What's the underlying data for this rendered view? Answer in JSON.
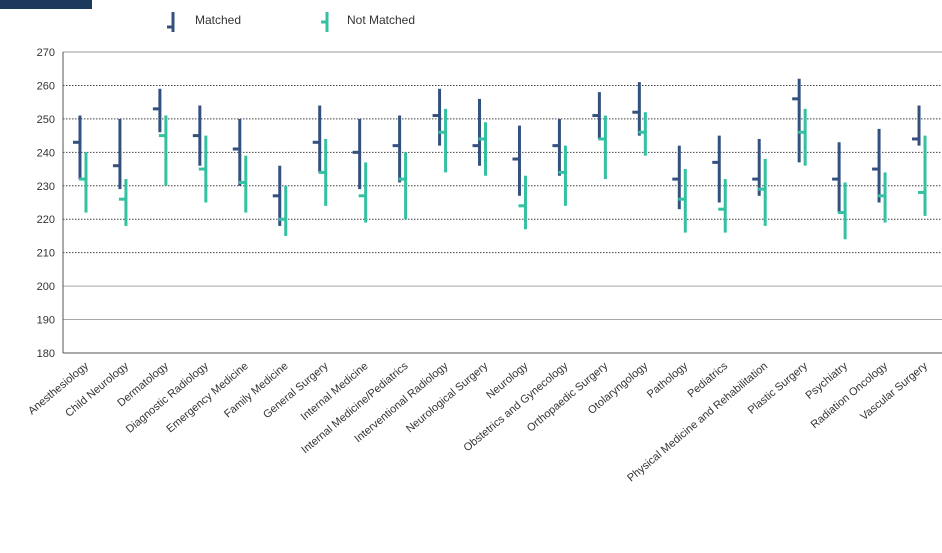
{
  "chart_data": {
    "type": "boxplot",
    "ylim": [
      180,
      270
    ],
    "yticks": [
      180,
      190,
      200,
      210,
      220,
      230,
      240,
      250,
      260,
      270
    ],
    "legend_position": "top",
    "grid": true,
    "categories": [
      "Anesthesiology",
      "Child Neurology",
      "Dermatology",
      "Diagnostic Radiology",
      "Emergency Medicine",
      "Family Medicine",
      "General Surgery",
      "Internal Medicine",
      "Internal Medicine/Pediatrics",
      "Interventional Radiology",
      "Neurological Surgery",
      "Neurology",
      "Obstetrics and Gynecology",
      "Orthopaedic Surgery",
      "Otolaryngology",
      "Pathology",
      "Pediatrics",
      "Physical Medicine and Rehabilitation",
      "Plastic Surgery",
      "Psychiatry",
      "Radiation Oncology",
      "Vascular Surgery"
    ],
    "series": [
      {
        "name": "Matched",
        "color": "#34507e",
        "high": [
          251,
          250,
          259,
          254,
          250,
          236,
          254,
          250,
          251,
          259,
          256,
          248,
          250,
          258,
          261,
          242,
          245,
          244,
          262,
          243,
          247,
          254
        ],
        "low": [
          232,
          229,
          246,
          236,
          230,
          218,
          234,
          229,
          231,
          242,
          236,
          227,
          233,
          244,
          245,
          223,
          225,
          227,
          237,
          222,
          225,
          242
        ],
        "median": [
          243,
          236,
          253,
          245,
          241,
          227,
          243,
          240,
          242,
          251,
          242,
          238,
          242,
          251,
          252,
          232,
          237,
          232,
          256,
          232,
          235,
          244
        ]
      },
      {
        "name": "Not Matched",
        "color": "#33c1a0",
        "high": [
          240,
          232,
          251,
          245,
          239,
          230,
          244,
          237,
          240,
          253,
          249,
          233,
          242,
          251,
          252,
          235,
          232,
          238,
          253,
          231,
          234,
          245
        ],
        "low": [
          222,
          218,
          230,
          225,
          222,
          215,
          224,
          219,
          220,
          234,
          233,
          217,
          224,
          232,
          239,
          216,
          216,
          218,
          236,
          214,
          219,
          221
        ],
        "median": [
          232,
          226,
          245,
          235,
          231,
          220,
          234,
          227,
          232,
          246,
          244,
          224,
          234,
          244,
          246,
          226,
          223,
          229,
          246,
          222,
          227,
          228
        ]
      }
    ]
  }
}
